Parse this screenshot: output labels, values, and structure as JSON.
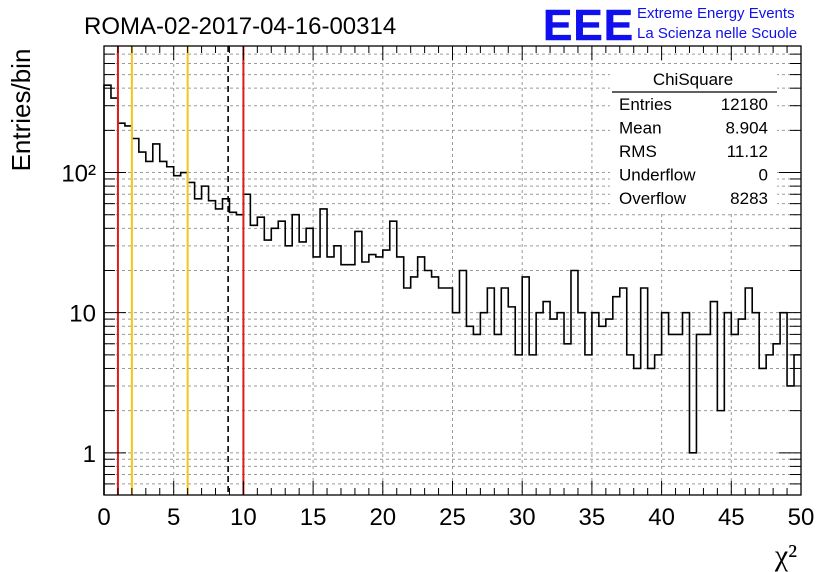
{
  "title": "ROMA-02-2017-04-16-00314",
  "logo": {
    "text": "EEE",
    "line1": "Extreme Energy Events",
    "line2": "La Scienza nelle Scuole",
    "color": "#1010ee"
  },
  "stats": {
    "name": "ChiSquare",
    "rows": [
      {
        "label": "Entries",
        "value": "12180"
      },
      {
        "label": "Mean",
        "value": "8.904"
      },
      {
        "label": "RMS",
        "value": "11.12"
      },
      {
        "label": "Underflow",
        "value": "0"
      },
      {
        "label": "Overflow",
        "value": "8283"
      }
    ]
  },
  "chart_data": {
    "type": "histogram",
    "ylabel": "Entries/bin",
    "xlabel": "χ²",
    "xlim": [
      0,
      50
    ],
    "ylim": [
      0.5,
      800
    ],
    "yscale": "log",
    "bin_width": 0.5,
    "grid": true,
    "x_ticks": [
      "0",
      "5",
      "10",
      "15",
      "20",
      "25",
      "30",
      "35",
      "40",
      "45",
      "50"
    ],
    "y_ticks": [
      {
        "value": 1,
        "label": "1"
      },
      {
        "value": 10,
        "label": "10"
      },
      {
        "value": 100,
        "label": "10²"
      }
    ],
    "values": [
      420,
      340,
      225,
      215,
      175,
      140,
      120,
      160,
      120,
      110,
      95,
      100,
      85,
      65,
      80,
      63,
      55,
      65,
      52,
      50,
      70,
      42,
      48,
      33,
      40,
      45,
      30,
      50,
      32,
      40,
      25,
      55,
      25,
      30,
      22,
      22,
      38,
      23,
      26,
      25,
      28,
      45,
      25,
      15,
      18,
      25,
      20,
      18,
      15,
      15,
      10,
      20,
      8,
      7,
      10,
      15,
      7,
      15,
      11,
      5,
      18,
      5,
      10,
      12,
      9,
      10,
      6,
      20,
      10,
      5,
      10,
      8,
      9,
      13,
      15,
      5,
      4,
      15,
      4,
      5,
      10,
      7,
      7,
      10,
      1,
      7,
      7,
      12,
      2,
      10,
      7,
      9,
      15,
      10,
      4,
      5,
      6,
      10,
      3,
      5,
      3
    ],
    "lines": [
      {
        "x": 1,
        "color": "#e01b1b",
        "style": "solid"
      },
      {
        "x": 2,
        "color": "#f5c518",
        "style": "solid"
      },
      {
        "x": 6,
        "color": "#f5c518",
        "style": "solid"
      },
      {
        "x": 8.904,
        "color": "#000000",
        "style": "dashed"
      },
      {
        "x": 10,
        "color": "#e01b1b",
        "style": "solid"
      }
    ]
  }
}
